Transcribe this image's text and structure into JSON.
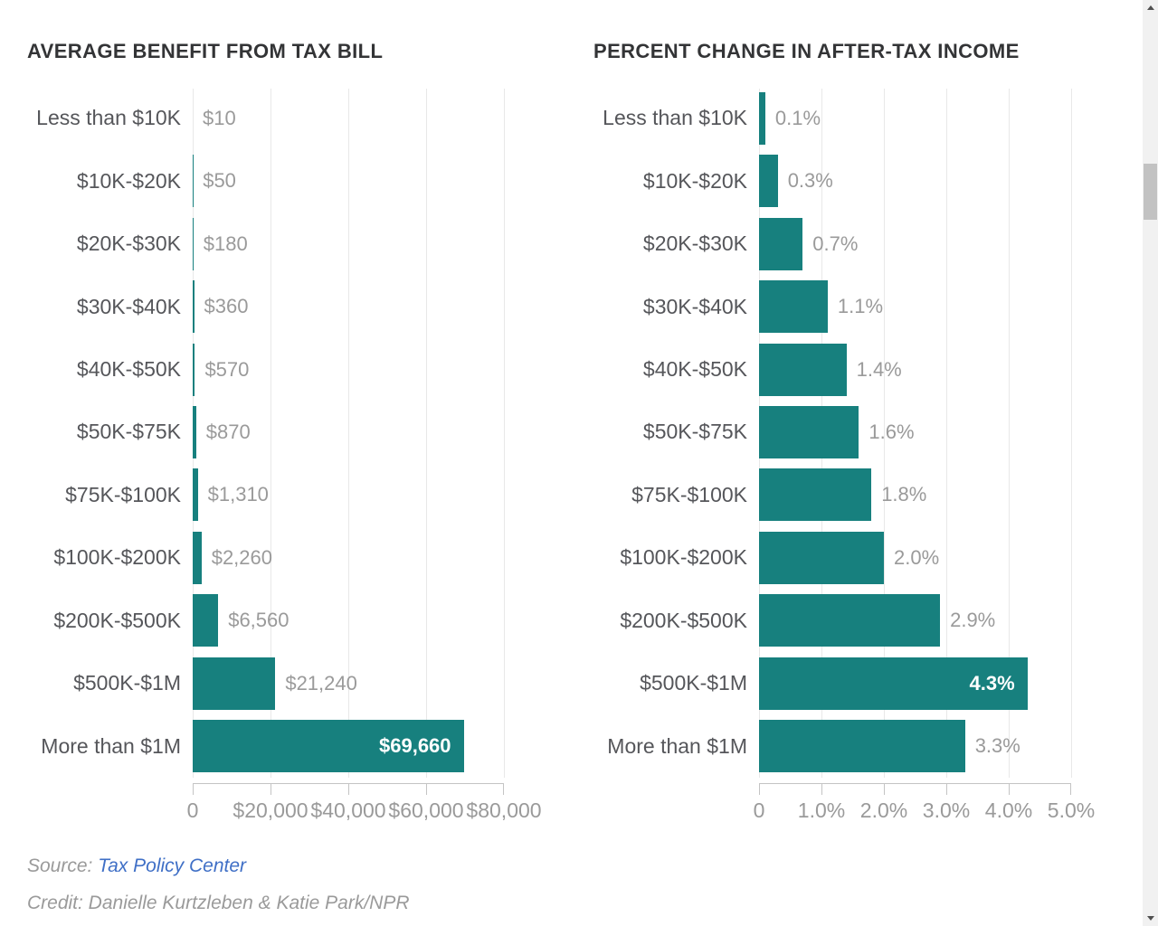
{
  "colors": {
    "bar_teal": "#17807E",
    "title_text": "#333436",
    "category_text": "#55565a",
    "value_text": "#9a9a9a",
    "inside_value_text": "#ffffff",
    "gridline": "#e8e8e8",
    "axis": "#c4c4c4",
    "link_blue": "#3f6fc6",
    "footer_gray": "#9a9a9a"
  },
  "chart_data": [
    {
      "type": "bar",
      "orientation": "horizontal",
      "title": "AVERAGE BENEFIT FROM TAX BILL",
      "categories": [
        "Less than $10K",
        "$10K-$20K",
        "$20K-$30K",
        "$30K-$40K",
        "$40K-$50K",
        "$50K-$75K",
        "$75K-$100K",
        "$100K-$200K",
        "$200K-$500K",
        "$500K-$1M",
        "More than $1M"
      ],
      "values": [
        10,
        50,
        180,
        360,
        570,
        870,
        1310,
        2260,
        6560,
        21240,
        69660
      ],
      "value_labels": [
        "$10",
        "$50",
        "$180",
        "$360",
        "$570",
        "$870",
        "$1,310",
        "$2,260",
        "$6,560",
        "$21,240",
        "$69,660"
      ],
      "xlim": [
        0,
        80000
      ],
      "x_ticks": [
        0,
        20000,
        40000,
        60000,
        80000
      ],
      "x_tick_labels": [
        "0",
        "$20,000",
        "$40,000",
        "$60,000",
        "$80,000"
      ],
      "grid": true,
      "inside_value_index": 10,
      "legend": null
    },
    {
      "type": "bar",
      "orientation": "horizontal",
      "title": "PERCENT CHANGE IN AFTER-TAX INCOME",
      "categories": [
        "Less than $10K",
        "$10K-$20K",
        "$20K-$30K",
        "$30K-$40K",
        "$40K-$50K",
        "$50K-$75K",
        "$75K-$100K",
        "$100K-$200K",
        "$200K-$500K",
        "$500K-$1M",
        "More than $1M"
      ],
      "values": [
        0.1,
        0.3,
        0.7,
        1.1,
        1.4,
        1.6,
        1.8,
        2.0,
        2.9,
        4.3,
        3.3
      ],
      "value_labels": [
        "0.1%",
        "0.3%",
        "0.7%",
        "1.1%",
        "1.4%",
        "1.6%",
        "1.8%",
        "2.0%",
        "2.9%",
        "4.3%",
        "3.3%"
      ],
      "xlim": [
        0,
        5
      ],
      "x_ticks": [
        0,
        1,
        2,
        3,
        4,
        5
      ],
      "x_tick_labels": [
        "0",
        "1.0%",
        "2.0%",
        "3.0%",
        "4.0%",
        "5.0%"
      ],
      "grid": true,
      "inside_value_index": 9,
      "legend": null
    }
  ],
  "footer": {
    "source_label": "Source: ",
    "source_link": "Tax Policy Center",
    "credit": "Credit: Danielle Kurtzleben & Katie Park/NPR"
  }
}
